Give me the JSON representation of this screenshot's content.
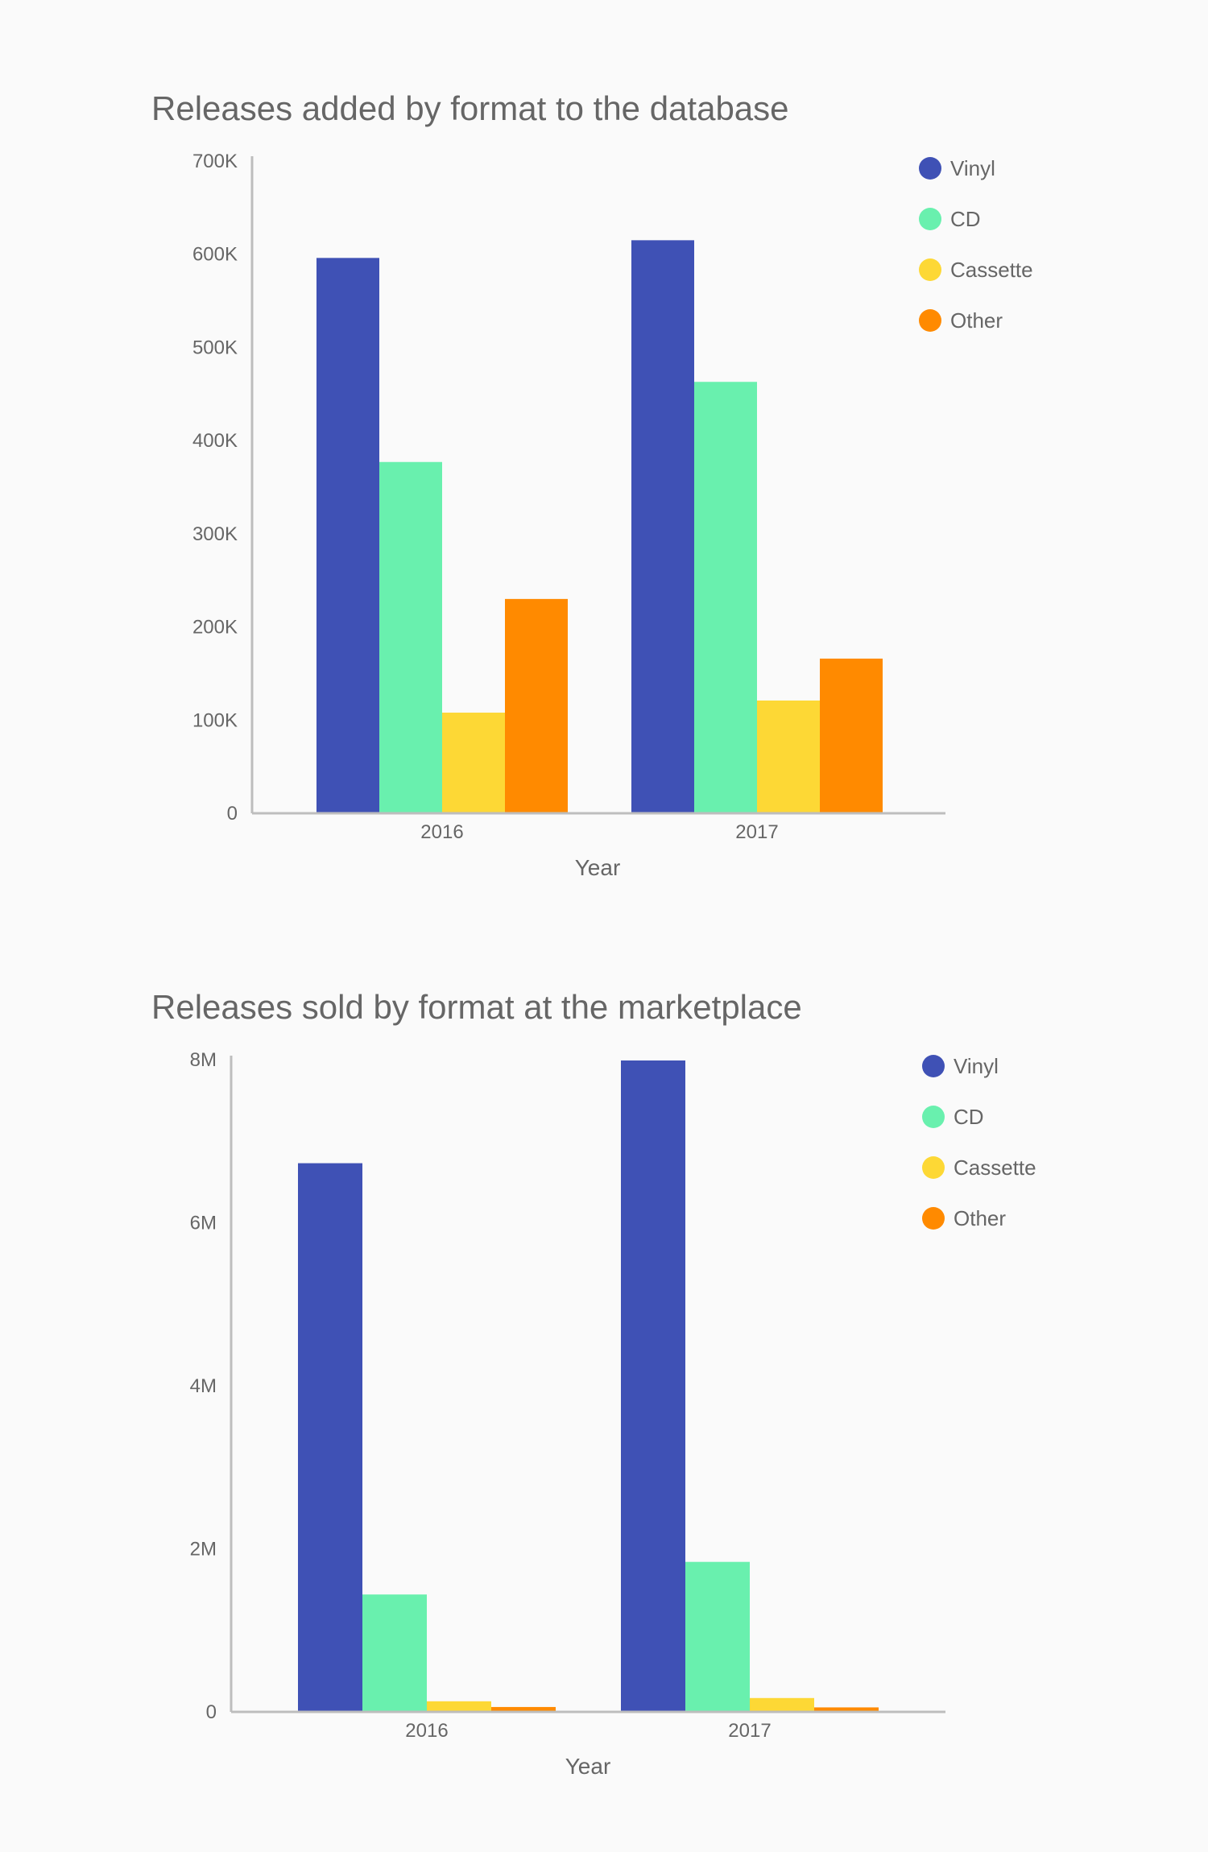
{
  "chart_data": [
    {
      "type": "bar",
      "title": "Releases added by format to the database",
      "xlabel": "Year",
      "ylabel": "",
      "categories": [
        "2016",
        "2017"
      ],
      "ylim": [
        0,
        700000
      ],
      "yticks": [
        {
          "value": 0,
          "label": "0"
        },
        {
          "value": 100000,
          "label": "100K"
        },
        {
          "value": 200000,
          "label": "200K"
        },
        {
          "value": 300000,
          "label": "300K"
        },
        {
          "value": 400000,
          "label": "400K"
        },
        {
          "value": 500000,
          "label": "500K"
        },
        {
          "value": 600000,
          "label": "600K"
        },
        {
          "value": 700000,
          "label": "700K"
        }
      ],
      "grid": false,
      "legend_position": "top-right",
      "series": [
        {
          "name": "Vinyl",
          "color": "#3f51b5",
          "values": [
            596000,
            615000
          ]
        },
        {
          "name": "CD",
          "color": "#69f0ae",
          "values": [
            377000,
            463000
          ]
        },
        {
          "name": "Cassette",
          "color": "#fdd835",
          "values": [
            108000,
            121000
          ]
        },
        {
          "name": "Other",
          "color": "#ff8a00",
          "values": [
            230000,
            166000
          ]
        }
      ]
    },
    {
      "type": "bar",
      "title": "Releases sold by format at the marketplace",
      "xlabel": "Year",
      "ylabel": "",
      "categories": [
        "2016",
        "2017"
      ],
      "ylim": [
        0,
        8000000
      ],
      "yticks": [
        {
          "value": 0,
          "label": "0"
        },
        {
          "value": 2000000,
          "label": "2M"
        },
        {
          "value": 4000000,
          "label": "4M"
        },
        {
          "value": 6000000,
          "label": "6M"
        },
        {
          "value": 8000000,
          "label": "8M"
        }
      ],
      "grid": false,
      "legend_position": "top-right",
      "series": [
        {
          "name": "Vinyl",
          "color": "#3f51b5",
          "values": [
            6730000,
            7990000
          ]
        },
        {
          "name": "CD",
          "color": "#69f0ae",
          "values": [
            1440000,
            1840000
          ]
        },
        {
          "name": "Cassette",
          "color": "#fdd835",
          "values": [
            130000,
            170000
          ]
        },
        {
          "name": "Other",
          "color": "#ff8a00",
          "values": [
            60000,
            55000
          ]
        }
      ]
    }
  ]
}
